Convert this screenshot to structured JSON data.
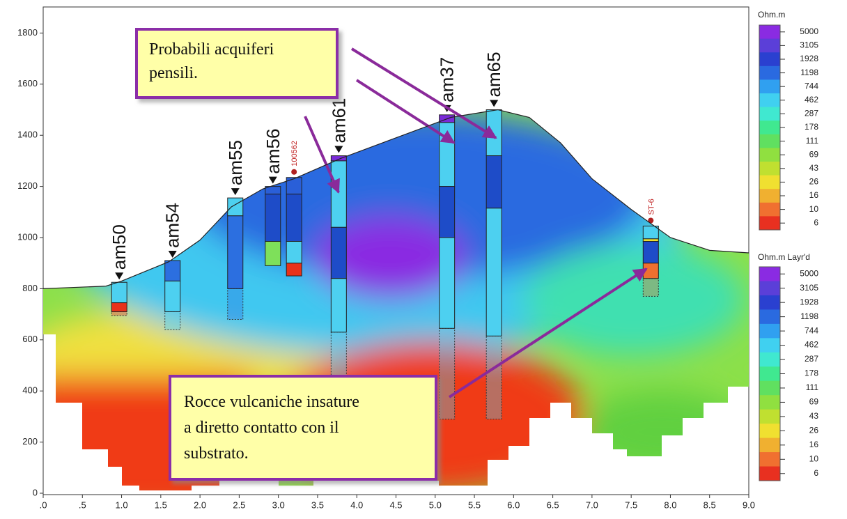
{
  "chart_data": {
    "type": "section",
    "xlim": [
      0,
      9
    ],
    "ylim": [
      0,
      1900
    ],
    "xticks": [
      {
        "value": 0,
        "label": ".0"
      },
      {
        "value": 0.5,
        "label": ".5"
      },
      {
        "value": 1,
        "label": "1.0"
      },
      {
        "value": 1.5,
        "label": "1.5"
      },
      {
        "value": 2,
        "label": "2.0"
      },
      {
        "value": 2.5,
        "label": "2.5"
      },
      {
        "value": 3,
        "label": "3.0"
      },
      {
        "value": 3.5,
        "label": "3.5"
      },
      {
        "value": 4,
        "label": "4.0"
      },
      {
        "value": 4.5,
        "label": "4.5"
      },
      {
        "value": 5,
        "label": "5.0"
      },
      {
        "value": 5.5,
        "label": "5.5"
      },
      {
        "value": 6,
        "label": "6.0"
      },
      {
        "value": 6.5,
        "label": "6.5"
      },
      {
        "value": 7,
        "label": "7.0"
      },
      {
        "value": 7.5,
        "label": "7.5"
      },
      {
        "value": 8,
        "label": "8.0"
      },
      {
        "value": 8.5,
        "label": "8.5"
      },
      {
        "value": 9,
        "label": "9.0"
      }
    ],
    "yticks": [
      0,
      200,
      400,
      600,
      800,
      1000,
      1200,
      1400,
      1600,
      1800
    ],
    "surface": {
      "color": "#222222",
      "x": [
        0,
        0.8,
        1.0,
        1.6,
        2.0,
        2.4,
        2.8,
        3.2,
        3.8,
        4.5,
        5.2,
        5.8,
        6.2,
        6.6,
        7.0,
        7.5,
        8.0,
        8.5,
        9.0
      ],
      "y": [
        800,
        810,
        830,
        905,
        990,
        1120,
        1190,
        1230,
        1310,
        1390,
        1470,
        1500,
        1470,
        1370,
        1230,
        1110,
        1000,
        950,
        940
      ]
    },
    "wells": [
      {
        "name": "am50",
        "x": 0.97,
        "layers": [
          825,
          745,
          710
        ],
        "colors": [
          "#4dd0f0",
          "#e8311a"
        ],
        "dotted_to": 695
      },
      {
        "name": "am54",
        "x": 1.65,
        "layers": [
          910,
          830,
          710
        ],
        "colors": [
          "#2c6fe0",
          "#4dd0f0"
        ],
        "dotted_to": 640
      },
      {
        "name": "am55",
        "x": 2.45,
        "layers": [
          1155,
          1085,
          800
        ],
        "colors": [
          "#4dd0f0",
          "#2c6fe0"
        ],
        "dotted_to": 680
      },
      {
        "name": "am56",
        "x": 2.93,
        "layers": [
          1200,
          1170,
          985,
          890
        ],
        "colors": [
          "#2a5fd8",
          "#1e4cc8",
          "#7ee05a"
        ],
        "dotted_to": 890
      },
      {
        "name": "100562",
        "x": 3.2,
        "layers": [
          1235,
          1170,
          985,
          900,
          850
        ],
        "colors": [
          "#2a5fd8",
          "#1e4cc8",
          "#4dd0f0",
          "#e8311a"
        ],
        "dotted_to": 850,
        "small": true
      },
      {
        "name": "am61",
        "x": 3.77,
        "layers": [
          1320,
          1300,
          1040,
          840,
          630
        ],
        "colors": [
          "#7a2bd8",
          "#4dd0f0",
          "#1e4cc8",
          "#4dd0f0"
        ],
        "dotted_to": 290
      },
      {
        "name": "am37",
        "x": 5.15,
        "layers": [
          1480,
          1450,
          1200,
          1000,
          645
        ],
        "colors": [
          "#7a2bd8",
          "#4dd0f0",
          "#1e4cc8",
          "#4dd0f0"
        ],
        "dotted_to": 290
      },
      {
        "name": "am65",
        "x": 5.75,
        "layers": [
          1500,
          1320,
          1115,
          615
        ],
        "colors": [
          "#4dd0f0",
          "#1e4cc8",
          "#4dd0f0"
        ],
        "dotted_to": 290
      },
      {
        "name": "ST-6",
        "x": 7.75,
        "layers": [
          1045,
          995,
          985,
          900,
          840
        ],
        "colors": [
          "#4dd0f0",
          "#f0e030",
          "#1e4cc8",
          "#f07030"
        ],
        "dotted_to": 770,
        "small": true
      }
    ],
    "colorbar_colors": [
      "#8a2be2",
      "#5b3fd8",
      "#2a40d0",
      "#2a6ae0",
      "#30a0f0",
      "#40d0f0",
      "#40e8d0",
      "#40e890",
      "#60e060",
      "#90e040",
      "#c0e030",
      "#f0e030",
      "#f0b030",
      "#f07030",
      "#e83020"
    ],
    "colorbars": [
      {
        "title": "Ohm.m",
        "ticks": [
          5000,
          3105,
          1928,
          1198,
          744,
          462,
          287,
          178,
          111,
          69,
          43,
          26,
          16,
          10,
          6
        ]
      },
      {
        "title": "Ohm.m Layr'd",
        "ticks": [
          5000,
          3105,
          1928,
          1198,
          744,
          462,
          287,
          178,
          111,
          69,
          43,
          26,
          16,
          10,
          6
        ]
      }
    ],
    "annotations": [
      {
        "lines": [
          "Probabili acquiferi",
          "pensili."
        ]
      },
      {
        "lines": [
          "Rocce vulcaniche insature",
          "a diretto contatto con il",
          "substrato."
        ]
      }
    ]
  }
}
